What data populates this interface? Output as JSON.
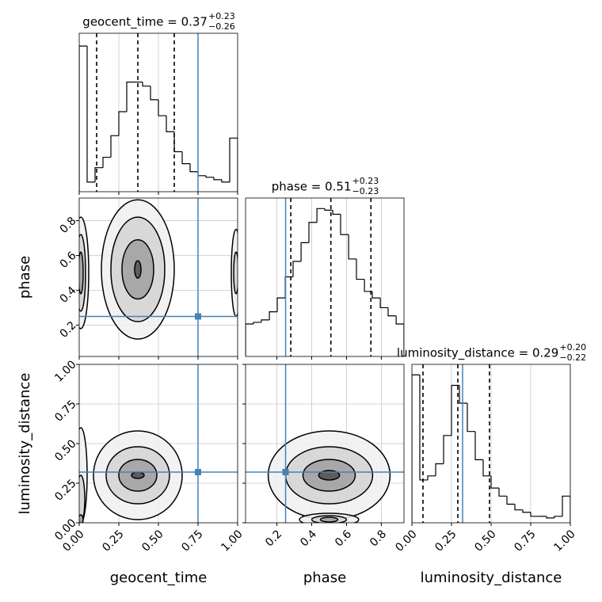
{
  "chart_data": [
    {
      "type": "histogram",
      "title": "geocent_time = 0.37",
      "title_sup": "+0.23",
      "title_sub": "−0.26",
      "bins": [
        0,
        0.05,
        0.1,
        0.15,
        0.2,
        0.25,
        0.3,
        0.35,
        0.4,
        0.45,
        0.5,
        0.55,
        0.6,
        0.65,
        0.7,
        0.75,
        0.8,
        0.85,
        0.9,
        0.95,
        1
      ],
      "values": [
        182,
        12,
        30,
        43,
        70,
        100,
        137,
        137,
        132,
        115,
        95,
        75,
        50,
        35,
        25,
        20,
        18,
        15,
        12,
        67
      ],
      "xlim": [
        0,
        1
      ],
      "ylim": [
        0,
        198
      ],
      "xticks": [
        0,
        0.25,
        0.5,
        0.75,
        1
      ],
      "xticklabels": false,
      "quantiles": [
        0.11,
        0.37,
        0.6
      ],
      "truth": 0.75,
      "color": "#000000",
      "truth_color": "#4682b4",
      "grid": true
    },
    {
      "type": "contour",
      "ylabel": "phase",
      "xlim": [
        0,
        1
      ],
      "ylim": [
        0.02,
        0.93
      ],
      "xticks": [
        0,
        0.25,
        0.5,
        0.75,
        1
      ],
      "xticklabels": false,
      "yticks": [
        0.2,
        0.4,
        0.6,
        0.8
      ],
      "yticklabels": true,
      "contours": [
        [
          [
            0.37,
            0.52,
            0.23,
            0.4
          ],
          [
            0.37,
            0.52,
            0.17,
            0.3
          ],
          [
            0.37,
            0.52,
            0.1,
            0.17
          ],
          [
            0.37,
            0.52,
            0.02,
            0.05
          ]
        ],
        [
          [
            0.01,
            0.5,
            0.05,
            0.32
          ],
          [
            0.01,
            0.5,
            0.03,
            0.22
          ],
          [
            0.01,
            0.5,
            0.015,
            0.12
          ]
        ],
        [
          [
            0.99,
            0.5,
            0.03,
            0.25
          ],
          [
            0.99,
            0.5,
            0.015,
            0.12
          ]
        ]
      ],
      "truth": [
        0.75,
        0.25
      ],
      "truth_color": "#4682b4",
      "grid": true
    },
    {
      "type": "histogram",
      "title": "phase = 0.51",
      "title_sup": "+0.23",
      "title_sub": "−0.23",
      "bins": [
        0.02,
        0.066,
        0.111,
        0.157,
        0.202,
        0.248,
        0.293,
        0.339,
        0.384,
        0.43,
        0.475,
        0.521,
        0.566,
        0.612,
        0.657,
        0.703,
        0.748,
        0.794,
        0.839,
        0.885,
        0.93
      ],
      "values": [
        40,
        42,
        45,
        55,
        72,
        98,
        117,
        140,
        165,
        182,
        180,
        175,
        150,
        120,
        95,
        80,
        72,
        60,
        50,
        40
      ],
      "xlim": [
        0.02,
        0.93
      ],
      "ylim": [
        0,
        195
      ],
      "xticks": [
        0.2,
        0.4,
        0.6,
        0.8
      ],
      "xticklabels": false,
      "quantiles": [
        0.28,
        0.51,
        0.74
      ],
      "truth": 0.25,
      "color": "#000000",
      "truth_color": "#4682b4",
      "grid": true
    },
    {
      "type": "contour",
      "xlabel": "geocent_time",
      "ylabel": "luminosity_distance",
      "xlim": [
        0,
        1
      ],
      "ylim": [
        0,
        1
      ],
      "xticks": [
        {
          "value": 0,
          "label": "0.00"
        },
        {
          "value": 0.25,
          "label": "0.25"
        },
        {
          "value": 0.5,
          "label": "0.50"
        },
        {
          "value": 0.75,
          "label": "0.75"
        },
        {
          "value": 1,
          "label": "1.00"
        }
      ],
      "xticklabels": true,
      "yticks": [
        {
          "value": 0,
          "label": "0.00"
        },
        {
          "value": 0.25,
          "label": "0.25"
        },
        {
          "value": 0.5,
          "label": "0.50"
        },
        {
          "value": 0.75,
          "label": "0.75"
        },
        {
          "value": 1,
          "label": "1.00"
        }
      ],
      "yticklabels": true,
      "contours": [
        [
          [
            0.37,
            0.3,
            0.28,
            0.28
          ],
          [
            0.37,
            0.3,
            0.2,
            0.18
          ],
          [
            0.37,
            0.3,
            0.12,
            0.1
          ],
          [
            0.37,
            0.3,
            0.04,
            0.02
          ]
        ],
        [
          [
            0.01,
            0.3,
            0.04,
            0.3
          ],
          [
            0.01,
            0.15,
            0.025,
            0.15
          ],
          [
            0.01,
            0.02,
            0.015,
            0.03
          ]
        ]
      ],
      "truth": [
        0.75,
        0.32
      ],
      "truth_color": "#4682b4",
      "grid": true
    },
    {
      "type": "contour",
      "xlabel": "phase",
      "xlim": [
        0.02,
        0.93
      ],
      "ylim": [
        0,
        1
      ],
      "xticks": [
        0.2,
        0.4,
        0.6,
        0.8
      ],
      "xticklabels": true,
      "yticks": [
        0,
        0.25,
        0.5,
        0.75,
        1
      ],
      "yticklabels": false,
      "contours": [
        [
          [
            0.5,
            0.3,
            0.35,
            0.28
          ],
          [
            0.5,
            0.3,
            0.25,
            0.18
          ],
          [
            0.5,
            0.3,
            0.15,
            0.1
          ],
          [
            0.5,
            0.3,
            0.06,
            0.03
          ]
        ],
        [
          [
            0.5,
            0.02,
            0.17,
            0.04
          ],
          [
            0.5,
            0.02,
            0.1,
            0.025
          ],
          [
            0.5,
            0.02,
            0.05,
            0.015
          ]
        ]
      ],
      "truth": [
        0.25,
        0.32
      ],
      "truth_color": "#4682b4",
      "grid": true
    },
    {
      "type": "histogram",
      "title": "luminosity_distance = 0.29",
      "title_sup": "+0.20",
      "title_sub": "−0.22",
      "xlabel": "luminosity_distance",
      "bins": [
        0,
        0.05,
        0.1,
        0.15,
        0.2,
        0.25,
        0.3,
        0.35,
        0.4,
        0.45,
        0.5,
        0.55,
        0.6,
        0.65,
        0.7,
        0.75,
        0.8,
        0.85,
        0.9,
        0.95,
        1
      ],
      "values": [
        183,
        53,
        58,
        73,
        108,
        170,
        148,
        113,
        78,
        58,
        43,
        33,
        23,
        16,
        13,
        8,
        8,
        6,
        8,
        33
      ],
      "xlim": [
        0,
        1
      ],
      "ylim": [
        0,
        196
      ],
      "xticks": [
        {
          "value": 0,
          "label": "0.00"
        },
        {
          "value": 0.25,
          "label": "0.25"
        },
        {
          "value": 0.5,
          "label": "0.50"
        },
        {
          "value": 0.75,
          "label": "0.75"
        },
        {
          "value": 1,
          "label": "1.00"
        }
      ],
      "xticklabels": true,
      "quantiles": [
        0.07,
        0.29,
        0.49
      ],
      "truth": 0.32,
      "color": "#000000",
      "truth_color": "#4682b4",
      "grid": true
    }
  ]
}
